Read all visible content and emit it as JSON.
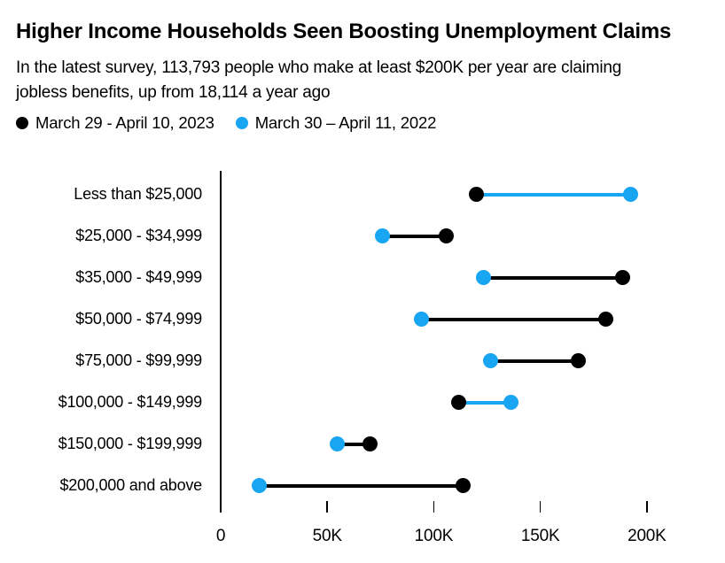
{
  "header": {
    "title": "Higher Income Households Seen Boosting Unemployment Claims",
    "subtitle": "In the latest survey, 113,793 people who make at least $200K per year are claiming jobless benefits, up from 18,114 a year ago"
  },
  "legend": [
    {
      "label": "March 29 - April 10, 2023",
      "color": "#000000"
    },
    {
      "label": "March 30 – April 11, 2022",
      "color": "#18a5f2"
    }
  ],
  "chart_data": {
    "type": "scatter",
    "subtype": "dumbbell",
    "orientation": "horizontal",
    "title": "Higher Income Households Seen Boosting Unemployment Claims",
    "subtitle": "In the latest survey, 113,793 people who make at least $200K per year are claiming jobless benefits, up from 18,114 a year ago",
    "categories": [
      "Less than $25,000",
      "$25,000 - $34,999",
      "$35,000 - $49,999",
      "$50,000 - $74,999",
      "$75,000 - $99,999",
      "$100,000 - $149,999",
      "$150,000 - $199,999",
      "$200,000 and above"
    ],
    "series": [
      {
        "name": "March 29 - April 10, 2023",
        "color": "#000000",
        "values": [
          120000,
          106000,
          188500,
          180500,
          168000,
          111500,
          70000,
          113793
        ]
      },
      {
        "name": "March 30 – April 11, 2022",
        "color": "#18a5f2",
        "values": [
          192500,
          76000,
          123500,
          94000,
          126500,
          136000,
          54500,
          18114
        ]
      }
    ],
    "xlim": [
      0,
      225000
    ],
    "xticks": [
      0,
      50000,
      100000,
      150000,
      200000
    ],
    "xtick_labels": [
      "0",
      "50K",
      "100K",
      "150K",
      "200K"
    ],
    "grid": false,
    "legend_position": "top",
    "connector_rule": "line takes the color of the series with the larger value"
  }
}
